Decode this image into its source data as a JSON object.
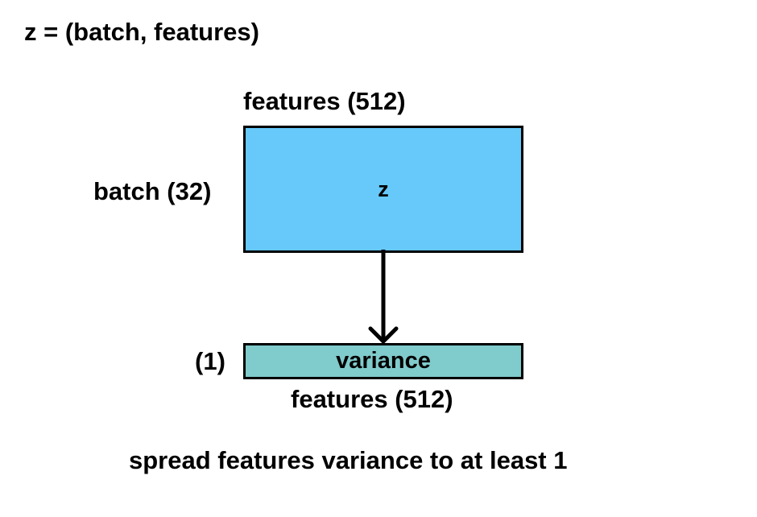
{
  "title": "z = (batch, features)",
  "z_block": {
    "label": "z",
    "top_dimension_label": "features (512)",
    "side_dimension_label": "batch (32)",
    "color": "#66c9fa"
  },
  "variance_block": {
    "label": "variance",
    "side_dimension_label": "(1)",
    "bottom_dimension_label": "features (512)",
    "color": "#80cbcb"
  },
  "caption": "spread features variance to at least 1"
}
